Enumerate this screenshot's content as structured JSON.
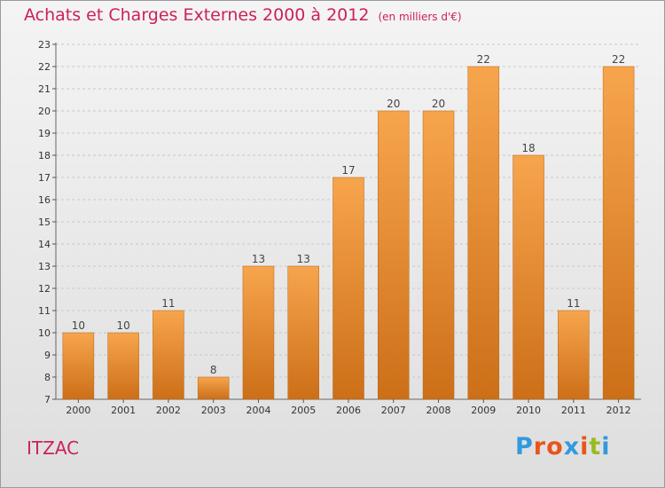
{
  "header": {
    "title": "Achats et Charges Externes 2000 à 2012",
    "unit": "(en milliers d'€)"
  },
  "footer": {
    "commune": "ITZAC",
    "logo": "Proxiti"
  },
  "colors": {
    "title": "#cc2255",
    "bar_light": "#f7a54d",
    "bar_dark": "#cc6f18",
    "logo_letters": [
      "#3399dd",
      "#e8551b",
      "#e8551b",
      "#3399dd",
      "#e8551b",
      "#99bb22",
      "#3399dd"
    ]
  },
  "chart_data": {
    "type": "bar",
    "title": "Achats et Charges Externes 2000 à 2012",
    "xlabel": "",
    "ylabel": "",
    "categories": [
      "2000",
      "2001",
      "2002",
      "2003",
      "2004",
      "2005",
      "2006",
      "2007",
      "2008",
      "2009",
      "2010",
      "2011",
      "2012"
    ],
    "values": [
      10,
      10,
      11,
      8,
      13,
      13,
      17,
      20,
      20,
      22,
      18,
      11,
      22
    ],
    "ylim": [
      7,
      23
    ],
    "yticks": [
      7,
      8,
      9,
      10,
      11,
      12,
      13,
      14,
      15,
      16,
      17,
      18,
      19,
      20,
      21,
      22,
      23
    ],
    "grid": true
  }
}
